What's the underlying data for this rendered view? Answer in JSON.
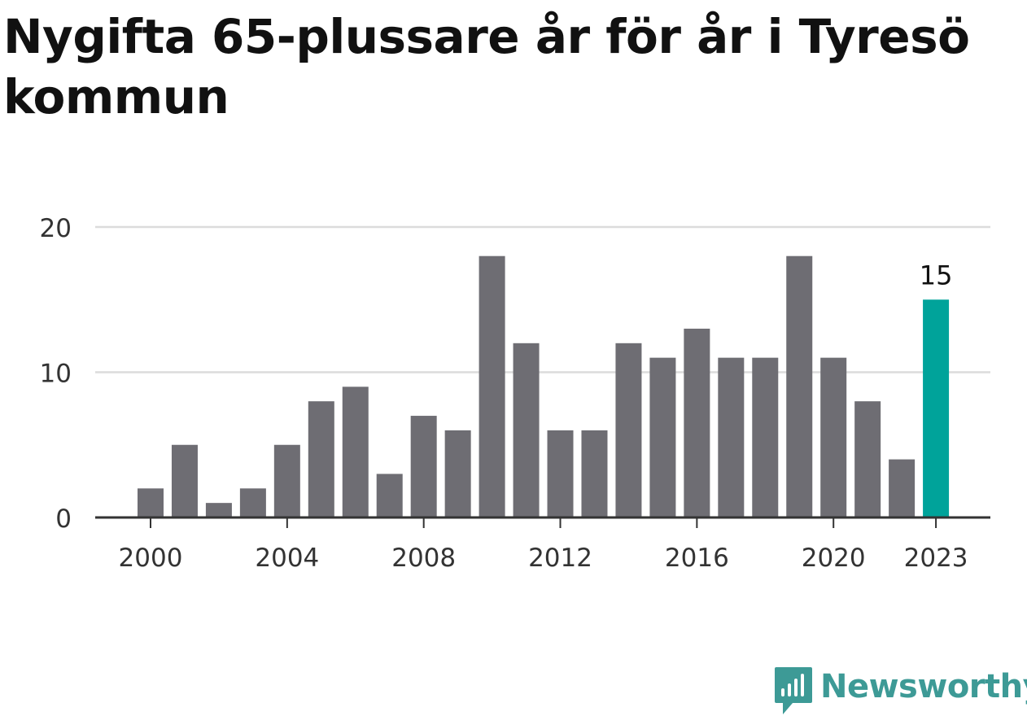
{
  "title": "Nygifta 65-plussare år för år i Tyresö kommun",
  "brand": {
    "name": "Newsworthy",
    "icon": "newsworthy-bar-chart-bubble-icon",
    "color": "#3d9a96"
  },
  "chart_data": {
    "type": "bar",
    "title": "Nygifta 65-plussare år för år i Tyresö kommun",
    "xlabel": "",
    "ylabel": "",
    "ylim": [
      0,
      20
    ],
    "yticks": [
      0,
      10,
      20
    ],
    "xticks": [
      2000,
      2004,
      2008,
      2012,
      2016,
      2020,
      2023
    ],
    "grid": true,
    "categories": [
      2000,
      2001,
      2002,
      2003,
      2004,
      2005,
      2006,
      2007,
      2008,
      2009,
      2010,
      2011,
      2012,
      2013,
      2014,
      2015,
      2016,
      2017,
      2018,
      2019,
      2020,
      2021,
      2022,
      2023
    ],
    "values": [
      2,
      5,
      1,
      2,
      5,
      8,
      9,
      3,
      7,
      6,
      18,
      12,
      6,
      6,
      12,
      11,
      13,
      11,
      11,
      18,
      11,
      8,
      4,
      15
    ],
    "highlight": {
      "category": 2023,
      "label": "15"
    },
    "colors": {
      "bar": "#6e6d73",
      "highlight": "#00a39a",
      "grid": "#dcdcdc",
      "axis": "#333333"
    }
  }
}
